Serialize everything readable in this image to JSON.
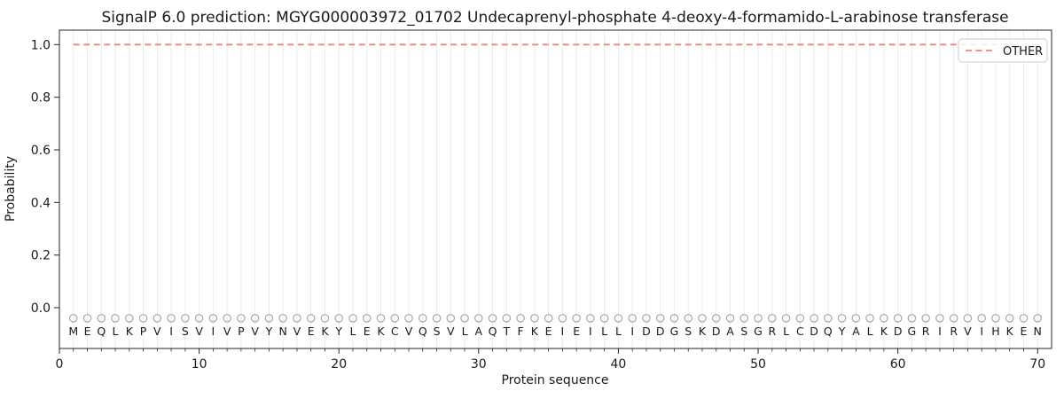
{
  "chart_data": {
    "type": "line",
    "title": "SignalP 6.0 prediction: MGYG000003972_01702 Undecaprenyl-phosphate 4-deoxy-4-formamido-L-arabinose transferase",
    "xlabel": "Protein sequence",
    "ylabel": "Probability",
    "xlim": [
      0,
      71
    ],
    "ylim": [
      -0.155,
      1.055
    ],
    "xticks": [
      0,
      10,
      20,
      30,
      40,
      50,
      60,
      70
    ],
    "yticks": [
      0.0,
      0.2,
      0.4,
      0.6,
      0.8,
      1.0
    ],
    "ytick_labels": [
      "0.0",
      "0.2",
      "0.4",
      "0.6",
      "0.8",
      "1.0"
    ],
    "grid": {
      "vertical_per_residue": true,
      "horizontal": false
    },
    "legend": {
      "position": "upper-right",
      "entries": [
        {
          "label": "OTHER",
          "line_style": "dashed",
          "color": "#ee8383"
        }
      ]
    },
    "series": [
      {
        "name": "OTHER",
        "style": "dashed",
        "color": "#ee8383",
        "x": [
          1,
          70
        ],
        "y": [
          1.0,
          1.0
        ]
      }
    ],
    "sequence": "MEQLKPVISVIVPVYNVEKYLEKCVQSVLAQTFKEIEILLIDDGSKDASGRLCDQYALKDGRIRVIHKEN",
    "sequence_length": 70,
    "residue_markers": {
      "shape": "open-circle",
      "color": "#a6a6a6",
      "y": -0.04
    },
    "sequence_letter_y": -0.09,
    "colors": {
      "line": "#ee8383",
      "grid": "#ebebeb",
      "marker": "#a6a6a6",
      "letter": "#1a1a1a",
      "spine": "#262626",
      "legend_border": "#cccccc"
    }
  }
}
